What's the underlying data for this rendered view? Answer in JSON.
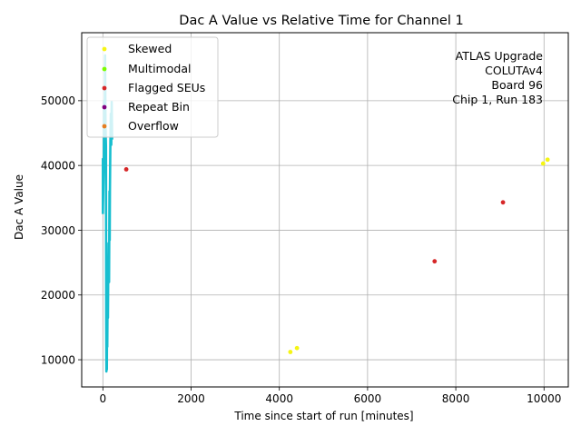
{
  "chart_data": {
    "type": "scatter",
    "title": "Dac A Value vs Relative Time for Channel 1",
    "xlabel": "Time since start of run [minutes]",
    "ylabel": "Dac A Value",
    "xlim": [
      -480,
      10550
    ],
    "ylim": [
      5800,
      60500
    ],
    "xticks": [
      0,
      2000,
      4000,
      6000,
      8000,
      10000
    ],
    "yticks": [
      10000,
      20000,
      30000,
      40000,
      50000
    ],
    "xtick_labels": [
      "0",
      "2000",
      "4000",
      "6000",
      "8000",
      "10000"
    ],
    "ytick_labels": [
      "10000",
      "20000",
      "30000",
      "40000",
      "50000"
    ],
    "grid": true,
    "legend_placement": "top-left",
    "annotation": [
      "ATLAS Upgrade",
      "COLUTAv4",
      "Board 96",
      "Chip 1, Run 183"
    ],
    "series": [
      {
        "name": "Skewed",
        "color": "#f5f514",
        "points": [
          [
            4250,
            11200
          ],
          [
            4400,
            11800
          ],
          [
            9980,
            40300
          ],
          [
            10080,
            40900
          ]
        ]
      },
      {
        "name": "Multimodal",
        "color": "#7cfc00",
        "points": []
      },
      {
        "name": "Flagged SEUs",
        "color": "#d62728",
        "points": [
          [
            530,
            39400
          ],
          [
            7520,
            25200
          ],
          [
            9070,
            34300
          ]
        ]
      },
      {
        "name": "Repeat Bin",
        "color": "#800080",
        "points": []
      },
      {
        "name": "Overflow",
        "color": "#e67e22",
        "points": []
      }
    ],
    "main_series": {
      "color": "#17becf",
      "line": [
        [
          0,
          32500
        ],
        [
          0,
          41000
        ],
        [
          0,
          32800
        ],
        [
          20,
          40000
        ],
        [
          30,
          50000
        ],
        [
          40,
          44000
        ],
        [
          50,
          57000
        ],
        [
          60,
          46000
        ],
        [
          70,
          43000
        ],
        [
          75,
          16000
        ],
        [
          80,
          8200
        ],
        [
          85,
          12000
        ],
        [
          90,
          8500
        ],
        [
          95,
          16000
        ],
        [
          100,
          12000
        ],
        [
          110,
          22000
        ],
        [
          115,
          16500
        ],
        [
          120,
          21500
        ],
        [
          130,
          28000
        ],
        [
          140,
          22000
        ],
        [
          150,
          36000
        ],
        [
          155,
          28500
        ],
        [
          160,
          36000
        ],
        [
          170,
          43500
        ],
        [
          180,
          48000
        ],
        [
          190,
          43200
        ],
        [
          200,
          49800
        ],
        [
          210,
          44000
        ]
      ]
    }
  }
}
